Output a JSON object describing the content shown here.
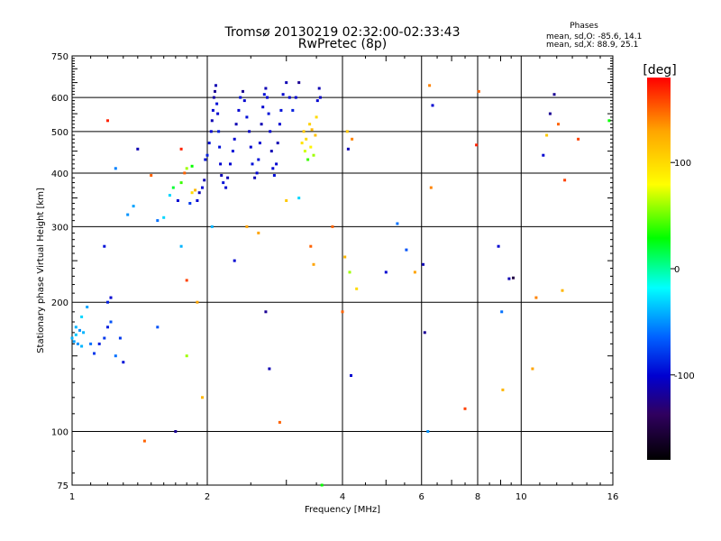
{
  "chart_data": {
    "type": "scatter",
    "title": "Tromsø 20130219 02:32:00-02:33:43",
    "subtitle": "RwPretec (8p)",
    "xlabel": "Frequency [MHz]",
    "ylabel": "Stationary phase Virtual Height [km]",
    "xscale": "log",
    "yscale": "log",
    "xlim": [
      1,
      16
    ],
    "ylim": [
      75,
      750
    ],
    "xticks": [
      1,
      2,
      4,
      6,
      8,
      10,
      16
    ],
    "yticks": [
      75,
      100,
      200,
      300,
      400,
      500,
      600,
      750
    ],
    "grid": true,
    "stats": {
      "heading": "Phases",
      "line_o": "mean, sd,O: -85.6, 14.1",
      "line_x": "mean, sd,X:  88.9, 25.1"
    },
    "colorbar": {
      "label": "[deg]",
      "range": [
        -180,
        180
      ],
      "ticks": [
        -100,
        0,
        100
      ],
      "colors": [
        "#000000",
        "#300060",
        "#0000d0",
        "#0060ff",
        "#00ffff",
        "#00ff00",
        "#ffff00",
        "#ffa500",
        "#ff0000"
      ]
    },
    "points": [
      [
        1.0,
        165,
        -40
      ],
      [
        1.01,
        162,
        -45
      ],
      [
        1.02,
        168,
        -35
      ],
      [
        1.03,
        160,
        -50
      ],
      [
        1.05,
        158,
        -40
      ],
      [
        1.02,
        175,
        -40
      ],
      [
        1.04,
        172,
        -50
      ],
      [
        1.06,
        170,
        -40
      ],
      [
        1.05,
        185,
        -30
      ],
      [
        1.08,
        195,
        -45
      ],
      [
        1.1,
        160,
        -60
      ],
      [
        1.12,
        152,
        -80
      ],
      [
        1.15,
        160,
        -90
      ],
      [
        1.18,
        165,
        -80
      ],
      [
        1.2,
        175,
        -90
      ],
      [
        1.22,
        180,
        -70
      ],
      [
        1.25,
        150,
        -60
      ],
      [
        1.28,
        165,
        -80
      ],
      [
        1.3,
        145,
        -95
      ],
      [
        1.22,
        205,
        -100
      ],
      [
        1.18,
        270,
        -95
      ],
      [
        1.2,
        530,
        170
      ],
      [
        1.25,
        410,
        -55
      ],
      [
        1.33,
        320,
        -50
      ],
      [
        1.37,
        335,
        -45
      ],
      [
        1.4,
        455,
        -110
      ],
      [
        1.45,
        95,
        150
      ],
      [
        1.5,
        395,
        150
      ],
      [
        1.55,
        310,
        -60
      ],
      [
        1.6,
        315,
        -30
      ],
      [
        1.65,
        355,
        -30
      ],
      [
        1.68,
        370,
        20
      ],
      [
        1.72,
        345,
        -100
      ],
      [
        1.75,
        380,
        40
      ],
      [
        1.78,
        400,
        150
      ],
      [
        1.8,
        410,
        60
      ],
      [
        1.83,
        340,
        -80
      ],
      [
        1.85,
        360,
        100
      ],
      [
        1.88,
        365,
        120
      ],
      [
        1.9,
        345,
        -100
      ],
      [
        1.92,
        360,
        -110
      ],
      [
        1.95,
        370,
        -100
      ],
      [
        1.97,
        385,
        -110
      ],
      [
        1.98,
        430,
        -95
      ],
      [
        2.0,
        440,
        -90
      ],
      [
        2.02,
        470,
        -95
      ],
      [
        2.04,
        500,
        -100
      ],
      [
        2.05,
        530,
        -110
      ],
      [
        2.06,
        560,
        -100
      ],
      [
        2.07,
        600,
        -115
      ],
      [
        2.08,
        620,
        -120
      ],
      [
        2.09,
        640,
        -110
      ],
      [
        2.1,
        580,
        -95
      ],
      [
        2.11,
        550,
        -100
      ],
      [
        2.12,
        500,
        -90
      ],
      [
        2.13,
        460,
        -95
      ],
      [
        2.14,
        420,
        -100
      ],
      [
        2.15,
        395,
        -110
      ],
      [
        2.17,
        380,
        -95
      ],
      [
        2.2,
        370,
        -100
      ],
      [
        2.22,
        390,
        -110
      ],
      [
        2.25,
        420,
        -100
      ],
      [
        2.28,
        450,
        -95
      ],
      [
        2.3,
        480,
        -100
      ],
      [
        2.32,
        520,
        -110
      ],
      [
        2.35,
        560,
        -100
      ],
      [
        2.37,
        600,
        -95
      ],
      [
        2.4,
        620,
        -120
      ],
      [
        2.42,
        590,
        -100
      ],
      [
        2.45,
        540,
        -95
      ],
      [
        2.48,
        500,
        -105
      ],
      [
        2.5,
        460,
        -100
      ],
      [
        2.52,
        420,
        -95
      ],
      [
        2.55,
        390,
        -110
      ],
      [
        2.58,
        400,
        -100
      ],
      [
        2.6,
        430,
        -95
      ],
      [
        2.62,
        470,
        -100
      ],
      [
        2.64,
        520,
        -110
      ],
      [
        2.66,
        570,
        -100
      ],
      [
        2.68,
        610,
        -95
      ],
      [
        2.7,
        630,
        -110
      ],
      [
        2.72,
        600,
        -100
      ],
      [
        2.74,
        550,
        -95
      ],
      [
        2.76,
        500,
        -100
      ],
      [
        2.78,
        450,
        -110
      ],
      [
        2.8,
        410,
        -100
      ],
      [
        2.82,
        395,
        -95
      ],
      [
        2.85,
        420,
        -100
      ],
      [
        2.87,
        470,
        -110
      ],
      [
        2.9,
        520,
        -100
      ],
      [
        2.92,
        560,
        -95
      ],
      [
        2.95,
        610,
        -100
      ],
      [
        3.0,
        650,
        -110
      ],
      [
        3.05,
        600,
        -100
      ],
      [
        3.1,
        560,
        -90
      ],
      [
        3.15,
        600,
        -100
      ],
      [
        3.2,
        650,
        -120
      ],
      [
        3.25,
        470,
        95
      ],
      [
        3.28,
        500,
        110
      ],
      [
        3.3,
        450,
        70
      ],
      [
        3.32,
        480,
        100
      ],
      [
        3.35,
        430,
        40
      ],
      [
        3.38,
        520,
        105
      ],
      [
        3.4,
        460,
        85
      ],
      [
        3.42,
        505,
        120
      ],
      [
        3.45,
        440,
        60
      ],
      [
        3.48,
        490,
        115
      ],
      [
        3.5,
        540,
        100
      ],
      [
        3.52,
        590,
        -100
      ],
      [
        3.55,
        630,
        -110
      ],
      [
        3.57,
        600,
        -105
      ],
      [
        2.7,
        190,
        -120
      ],
      [
        2.75,
        140,
        -110
      ],
      [
        2.9,
        105,
        150
      ],
      [
        3.2,
        350,
        -30
      ],
      [
        3.4,
        270,
        150
      ],
      [
        3.45,
        245,
        130
      ],
      [
        3.6,
        75,
        30
      ],
      [
        3.8,
        300,
        150
      ],
      [
        4.0,
        190,
        150
      ],
      [
        4.05,
        255,
        120
      ],
      [
        4.1,
        500,
        110
      ],
      [
        4.12,
        455,
        -110
      ],
      [
        4.15,
        235,
        60
      ],
      [
        4.18,
        135,
        -100
      ],
      [
        4.2,
        480,
        140
      ],
      [
        4.3,
        215,
        100
      ],
      [
        5.0,
        235,
        -100
      ],
      [
        5.3,
        305,
        -60
      ],
      [
        5.55,
        265,
        -70
      ],
      [
        5.8,
        235,
        130
      ],
      [
        6.05,
        245,
        -110
      ],
      [
        6.1,
        170,
        -120
      ],
      [
        6.2,
        100,
        -50
      ],
      [
        6.25,
        640,
        140
      ],
      [
        6.3,
        370,
        140
      ],
      [
        6.35,
        575,
        -100
      ],
      [
        7.5,
        113,
        160
      ],
      [
        7.95,
        465,
        170
      ],
      [
        8.05,
        620,
        150
      ],
      [
        8.9,
        270,
        -100
      ],
      [
        9.05,
        190,
        -60
      ],
      [
        9.1,
        125,
        120
      ],
      [
        9.4,
        227,
        -110
      ],
      [
        9.6,
        228,
        -150
      ],
      [
        10.6,
        140,
        130
      ],
      [
        10.8,
        205,
        140
      ],
      [
        11.2,
        440,
        -100
      ],
      [
        11.4,
        490,
        110
      ],
      [
        11.6,
        550,
        -120
      ],
      [
        11.85,
        610,
        -120
      ],
      [
        12.1,
        520,
        150
      ],
      [
        12.35,
        213,
        120
      ],
      [
        12.5,
        385,
        160
      ],
      [
        13.4,
        480,
        160
      ],
      [
        15.7,
        530,
        30
      ],
      [
        1.75,
        455,
        170
      ],
      [
        1.85,
        415,
        30
      ],
      [
        1.95,
        120,
        120
      ],
      [
        2.05,
        300,
        -40
      ],
      [
        2.3,
        250,
        -100
      ],
      [
        2.45,
        300,
        130
      ],
      [
        2.6,
        290,
        130
      ],
      [
        3.0,
        345,
        110
      ],
      [
        1.55,
        175,
        -70
      ],
      [
        1.7,
        100,
        -120
      ],
      [
        1.9,
        200,
        130
      ],
      [
        1.8,
        225,
        160
      ],
      [
        1.75,
        270,
        -40
      ],
      [
        1.8,
        150,
        60
      ],
      [
        1.2,
        200,
        -90
      ]
    ]
  }
}
